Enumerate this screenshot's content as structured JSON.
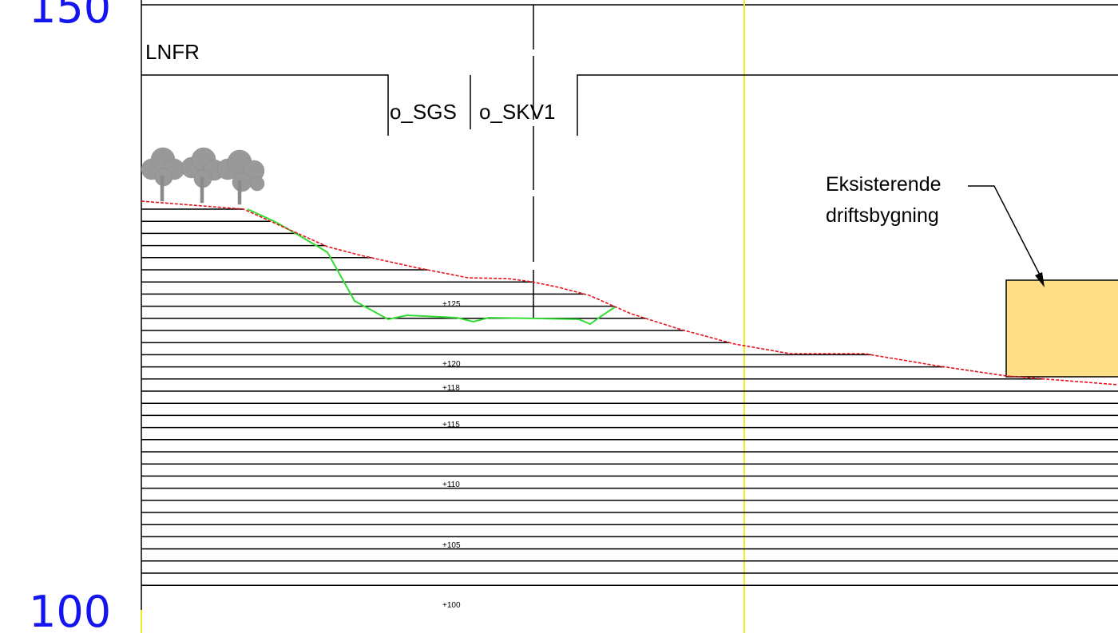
{
  "scale": {
    "top_label": "150",
    "bottom_label": "100"
  },
  "zones": {
    "lnfr": "LNFR",
    "sgs": "o_SGS",
    "skv": "o_SKV1"
  },
  "annotation": {
    "line1": "Eksisterende",
    "line2": "driftsbygning"
  },
  "elevation_labels": [
    "+125",
    "+120",
    "+118",
    "+115",
    "+110",
    "+105",
    "+100"
  ],
  "colors": {
    "scale_text": "#1414ee",
    "terrain_line": "#e8111a",
    "proposed_line": "#33dd33",
    "building_fill": "#ffdf85",
    "marker_line": "#eeee22",
    "tree": "#999999"
  },
  "icons": {
    "trees": "tree-group-icon",
    "arrow": "arrow-icon"
  }
}
